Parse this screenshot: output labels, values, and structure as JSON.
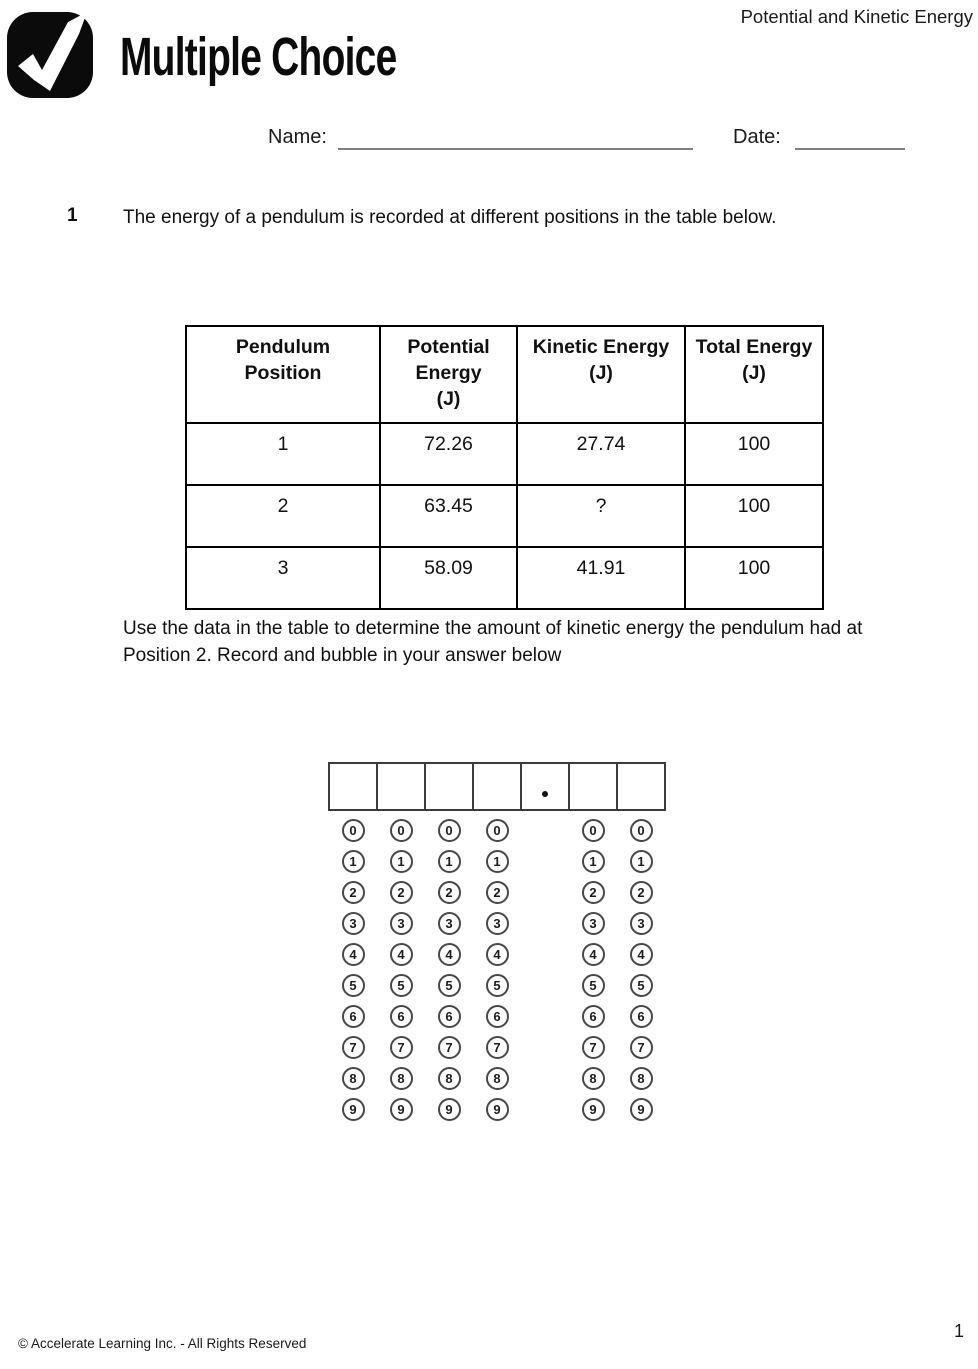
{
  "header": {
    "title": "Multiple Choice",
    "topic": "Potential and Kinetic Energy",
    "name_label": "Name:",
    "date_label": "Date:",
    "logo_icon": "checkmark-icon",
    "logo_colors": {
      "background": "#0b0b0b",
      "check": "#ffffff"
    }
  },
  "question": {
    "number": "1",
    "text": "The energy of a pendulum is recorded at different positions in the table below.",
    "instruction": "Use the data in the table to determine the amount of kinetic energy the pendulum had at Position 2.  Record and bubble in your answer below"
  },
  "table": {
    "columns": [
      "Pendulum\nPosition",
      "Potential\nEnergy\n(J)",
      "Kinetic Energy\n(J)",
      "Total Energy\n(J)"
    ],
    "rows": [
      [
        "1",
        "72.26",
        "27.74",
        "100"
      ],
      [
        "2",
        "63.45",
        "?",
        "100"
      ],
      [
        "3",
        "58.09",
        "41.91",
        "100"
      ]
    ]
  },
  "answer_grid": {
    "columns": [
      "digit",
      "digit",
      "digit",
      "digit",
      "decimal",
      "digit",
      "digit"
    ],
    "decimal_symbol": ".",
    "bubble_digits": [
      "0",
      "1",
      "2",
      "3",
      "4",
      "5",
      "6",
      "7",
      "8",
      "9"
    ]
  },
  "footer": {
    "copyright": "© Accelerate Learning Inc. - All Rights Reserved",
    "page_number": "1"
  }
}
